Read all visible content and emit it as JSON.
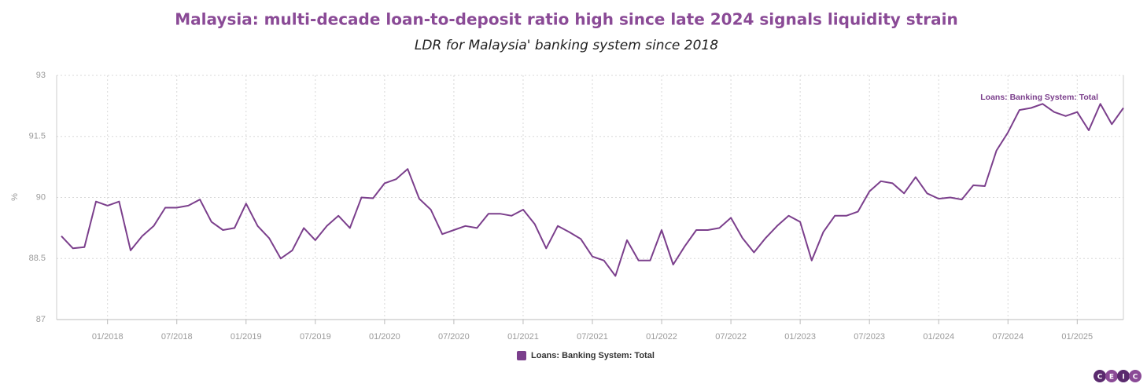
{
  "chart_data": {
    "type": "line",
    "title": "Malaysia: multi-decade loan-to-deposit ratio high since late 2024 signals liquidity strain",
    "subtitle": "LDR for Malaysia' banking system since 2018",
    "y_label": "%",
    "annotation": "Loans: Banking System: Total",
    "x": [
      "2017-09",
      "2017-10",
      "2017-11",
      "2017-12",
      "2018-01",
      "2018-02",
      "2018-03",
      "2018-04",
      "2018-05",
      "2018-06",
      "2018-07",
      "2018-08",
      "2018-09",
      "2018-10",
      "2018-11",
      "2018-12",
      "2019-01",
      "2019-02",
      "2019-03",
      "2019-04",
      "2019-05",
      "2019-06",
      "2019-07",
      "2019-08",
      "2019-09",
      "2019-10",
      "2019-11",
      "2019-12",
      "2020-01",
      "2020-02",
      "2020-03",
      "2020-04",
      "2020-05",
      "2020-06",
      "2020-07",
      "2020-08",
      "2020-09",
      "2020-10",
      "2020-11",
      "2020-12",
      "2021-01",
      "2021-02",
      "2021-03",
      "2021-04",
      "2021-05",
      "2021-06",
      "2021-07",
      "2021-08",
      "2021-09",
      "2021-10",
      "2021-11",
      "2021-12",
      "2022-01",
      "2022-02",
      "2022-03",
      "2022-04",
      "2022-05",
      "2022-06",
      "2022-07",
      "2022-08",
      "2022-09",
      "2022-10",
      "2022-11",
      "2022-12",
      "2023-01",
      "2023-02",
      "2023-03",
      "2023-04",
      "2023-05",
      "2023-06",
      "2023-07",
      "2023-08",
      "2023-09",
      "2023-10",
      "2023-11",
      "2023-12",
      "2024-01",
      "2024-02",
      "2024-03",
      "2024-04",
      "2024-05",
      "2024-06",
      "2024-07",
      "2024-08",
      "2024-09",
      "2024-10",
      "2024-11",
      "2024-12",
      "2025-01",
      "2025-02",
      "2025-03",
      "2025-04",
      "2025-05"
    ],
    "series": [
      {
        "name": "Loans: Banking System: Total",
        "color": "#7b3f8c",
        "values": [
          89.05,
          88.75,
          88.78,
          89.9,
          89.8,
          89.9,
          88.7,
          89.05,
          89.3,
          89.75,
          89.75,
          89.8,
          89.95,
          89.4,
          89.2,
          89.25,
          89.85,
          89.3,
          89.0,
          88.5,
          88.7,
          89.25,
          88.95,
          89.3,
          89.55,
          89.25,
          90.0,
          89.98,
          90.35,
          90.45,
          90.7,
          89.97,
          89.7,
          89.1,
          89.2,
          89.3,
          89.25,
          89.6,
          89.6,
          89.55,
          89.7,
          89.35,
          88.75,
          89.3,
          89.15,
          88.98,
          88.55,
          88.45,
          88.07,
          88.95,
          88.45,
          88.45,
          89.2,
          88.35,
          88.8,
          89.2,
          89.2,
          89.25,
          89.5,
          89.0,
          88.65,
          89.0,
          89.3,
          89.55,
          89.4,
          88.45,
          89.15,
          89.55,
          89.55,
          89.65,
          90.15,
          90.4,
          90.35,
          90.1,
          90.5,
          90.1,
          89.97,
          90.0,
          89.95,
          90.3,
          90.28,
          91.15,
          91.6,
          92.15,
          92.2,
          92.3,
          92.1,
          92.0,
          92.1,
          91.65,
          92.3,
          91.8,
          92.2
        ]
      }
    ],
    "xlim": [
      "2017-09",
      "2025-05"
    ],
    "xticks": [
      {
        "value": "2018-01",
        "label": "01/2018"
      },
      {
        "value": "2018-07",
        "label": "07/2018"
      },
      {
        "value": "2019-01",
        "label": "01/2019"
      },
      {
        "value": "2019-07",
        "label": "07/2019"
      },
      {
        "value": "2020-01",
        "label": "01/2020"
      },
      {
        "value": "2020-07",
        "label": "07/2020"
      },
      {
        "value": "2021-01",
        "label": "01/2021"
      },
      {
        "value": "2021-07",
        "label": "07/2021"
      },
      {
        "value": "2022-01",
        "label": "01/2022"
      },
      {
        "value": "2022-07",
        "label": "07/2022"
      },
      {
        "value": "2023-01",
        "label": "01/2023"
      },
      {
        "value": "2023-07",
        "label": "07/2023"
      },
      {
        "value": "2024-01",
        "label": "01/2024"
      },
      {
        "value": "2024-07",
        "label": "07/2024"
      },
      {
        "value": "2025-01",
        "label": "01/2025"
      }
    ],
    "ylim": [
      87,
      93
    ],
    "yticks": [
      87,
      88.5,
      90,
      91.5,
      93
    ],
    "grid": true,
    "legend": "bottom"
  },
  "logo": [
    "C",
    "E",
    "I",
    "C"
  ]
}
